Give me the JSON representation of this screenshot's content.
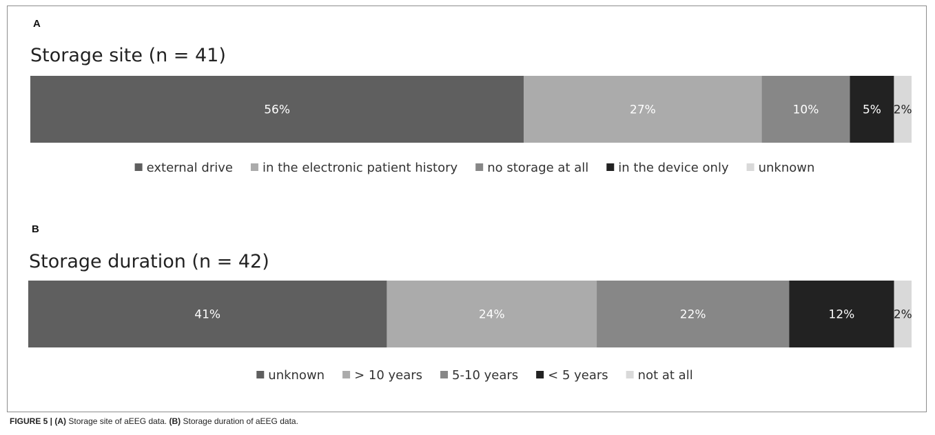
{
  "colors": {
    "dark_gray": "#5f5f5f",
    "light_gray": "#ababab",
    "mid_gray": "#878787",
    "black": "#222222",
    "pale_gray": "#d9d9d9"
  },
  "chart_data": [
    {
      "type": "bar",
      "orientation": "horizontal-stacked-100",
      "panel": "A",
      "title": "Storage site (n = 41)",
      "legend_position": "bottom",
      "series": [
        {
          "name": "external drive",
          "value": 56,
          "label": "56%",
          "color": "#5f5f5f",
          "label_color": "#ffffff"
        },
        {
          "name": "in the electronic patient history",
          "value": 27,
          "label": "27%",
          "color": "#ababab",
          "label_color": "#ffffff"
        },
        {
          "name": "no storage at all",
          "value": 10,
          "label": "10%",
          "color": "#878787",
          "label_color": "#ffffff"
        },
        {
          "name": "in the device only",
          "value": 5,
          "label": "5%",
          "color": "#222222",
          "label_color": "#ffffff"
        },
        {
          "name": "unknown",
          "value": 2,
          "label": "2%",
          "color": "#d9d9d9",
          "label_color": "#222222"
        }
      ]
    },
    {
      "type": "bar",
      "orientation": "horizontal-stacked-100",
      "panel": "B",
      "title": "Storage duration (n = 42)",
      "legend_position": "bottom",
      "series": [
        {
          "name": "unknown",
          "value": 41,
          "label": "41%",
          "color": "#5f5f5f",
          "label_color": "#ffffff"
        },
        {
          "name": "> 10 years",
          "value": 24,
          "label": "24%",
          "color": "#ababab",
          "label_color": "#ffffff"
        },
        {
          "name": "5-10 years",
          "value": 22,
          "label": "22%",
          "color": "#878787",
          "label_color": "#ffffff"
        },
        {
          "name": "< 5 years",
          "value": 12,
          "label": "12%",
          "color": "#222222",
          "label_color": "#ffffff"
        },
        {
          "name": "not at all",
          "value": 2,
          "label": "2%",
          "color": "#d9d9d9",
          "label_color": "#222222"
        }
      ]
    }
  ],
  "caption": {
    "prefix": "FIGURE 5 | ",
    "part_a_tag": "(A)",
    "part_a_text": " Storage site of aEEG data. ",
    "part_b_tag": "(B)",
    "part_b_text": " Storage duration of aEEG data."
  }
}
